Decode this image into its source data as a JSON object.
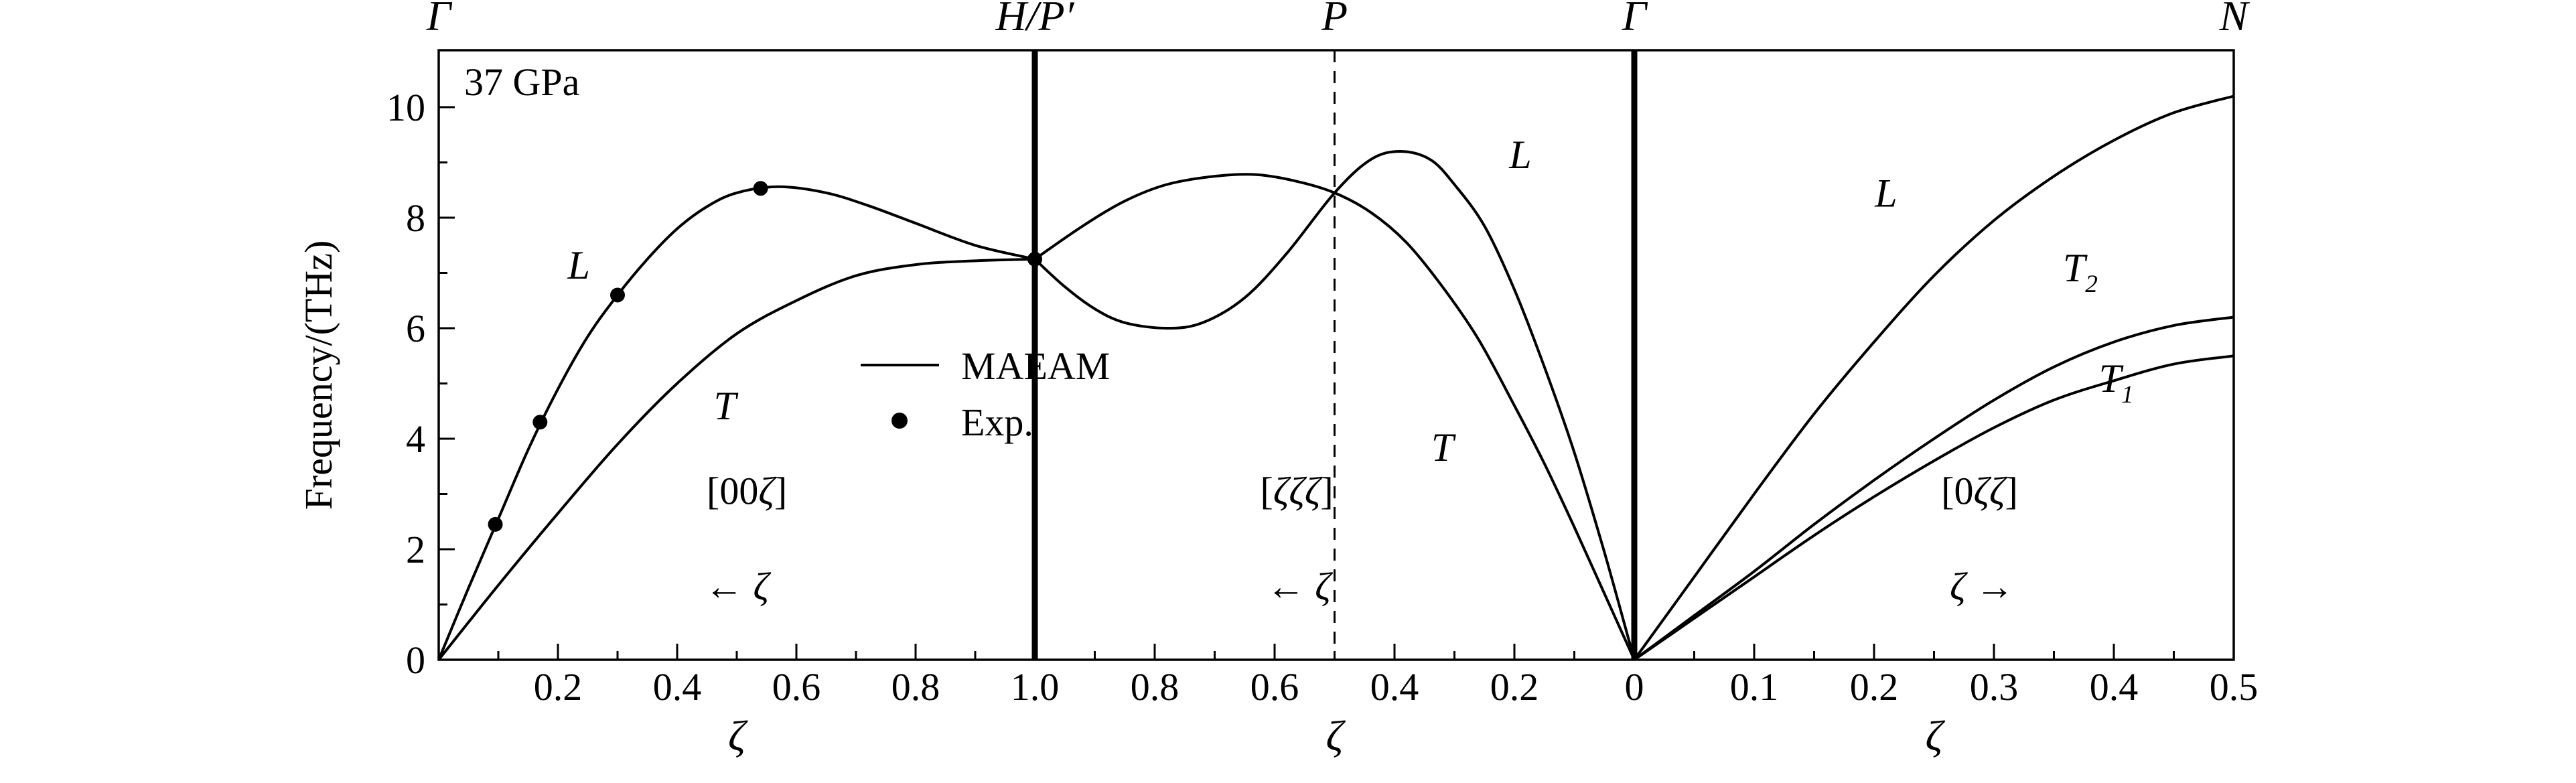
{
  "chart_data": {
    "type": "line",
    "title": "37 GPa",
    "ylabel": "Frequency/(THz)",
    "ylim": [
      0,
      11
    ],
    "yticks": [
      0,
      2,
      4,
      6,
      8,
      10
    ],
    "yminor": [
      1,
      3,
      5,
      7,
      9
    ],
    "top_labels": [
      "Γ",
      "H/P′",
      "P",
      "Γ",
      "N"
    ],
    "legend": {
      "items": [
        {
          "marker": "line",
          "label": "MAEAM"
        },
        {
          "marker": "dot",
          "label": "Exp."
        }
      ]
    },
    "panels": [
      {
        "direction_label": "[00ζ]",
        "arrow_label": "← ζ",
        "xlabel": "ζ",
        "zeta_axis": {
          "start": 0,
          "end": 1,
          "reversed": false
        },
        "xticks": [
          {
            "value": 0.2,
            "label": "0.2"
          },
          {
            "value": 0.4,
            "label": "0.4"
          },
          {
            "value": 0.6,
            "label": "0.6"
          },
          {
            "value": 0.8,
            "label": "0.8"
          },
          {
            "value": 1.0,
            "label": "1.0"
          }
        ],
        "xminor": [
          0.1,
          0.3,
          0.5,
          0.7,
          0.9
        ],
        "series": [
          {
            "name": "L",
            "points": [
              [
                0,
                0
              ],
              [
                0.05,
                1.3
              ],
              [
                0.1,
                2.55
              ],
              [
                0.15,
                3.8
              ],
              [
                0.2,
                4.9
              ],
              [
                0.25,
                5.85
              ],
              [
                0.3,
                6.6
              ],
              [
                0.35,
                7.25
              ],
              [
                0.4,
                7.8
              ],
              [
                0.45,
                8.2
              ],
              [
                0.5,
                8.45
              ],
              [
                0.57,
                8.56
              ],
              [
                0.65,
                8.45
              ],
              [
                0.72,
                8.22
              ],
              [
                0.8,
                7.9
              ],
              [
                0.9,
                7.5
              ],
              [
                1,
                7.25
              ]
            ]
          },
          {
            "name": "T",
            "points": [
              [
                0,
                0
              ],
              [
                0.1,
                1.35
              ],
              [
                0.2,
                2.65
              ],
              [
                0.3,
                3.9
              ],
              [
                0.4,
                5.0
              ],
              [
                0.5,
                5.9
              ],
              [
                0.6,
                6.5
              ],
              [
                0.7,
                6.95
              ],
              [
                0.8,
                7.15
              ],
              [
                0.9,
                7.22
              ],
              [
                1,
                7.25
              ]
            ]
          }
        ],
        "exp_points": [
          [
            0.095,
            2.45
          ],
          [
            0.17,
            4.3
          ],
          [
            0.3,
            6.6
          ],
          [
            0.54,
            8.53
          ],
          [
            1.0,
            7.25
          ]
        ],
        "branch_labels": [
          {
            "text": "L",
            "zeta": 0.235,
            "freq": 6.9
          },
          {
            "text": "T",
            "zeta": 0.48,
            "freq": 4.35
          }
        ],
        "annotation_pos": {
          "direction": {
            "zeta": 0.517,
            "freq": 2.82
          },
          "arrow": {
            "zeta": 0.5,
            "freq": 1.09
          }
        }
      },
      {
        "direction_label": "[ζζζ]",
        "arrow_label": "← ζ",
        "xlabel": "ζ",
        "zeta_axis": {
          "start": 0,
          "end": 1,
          "reversed": true
        },
        "dashed_line_zeta": 0.5,
        "xticks": [
          {
            "value": 0.8,
            "label": "0.8"
          },
          {
            "value": 0.6,
            "label": "0.6"
          },
          {
            "value": 0.4,
            "label": "0.4"
          },
          {
            "value": 0.2,
            "label": "0.2"
          }
        ],
        "xminor": [
          0.9,
          0.7,
          0.5,
          0.3,
          0.1
        ],
        "series": [
          {
            "name": "L",
            "points": [
              [
                1,
                7.25
              ],
              [
                0.95,
                6.75
              ],
              [
                0.9,
                6.35
              ],
              [
                0.85,
                6.1
              ],
              [
                0.78,
                6.0
              ],
              [
                0.72,
                6.1
              ],
              [
                0.65,
                6.55
              ],
              [
                0.58,
                7.35
              ],
              [
                0.5,
                8.45
              ],
              [
                0.44,
                9.05
              ],
              [
                0.39,
                9.2
              ],
              [
                0.34,
                9.05
              ],
              [
                0.3,
                8.6
              ],
              [
                0.25,
                7.85
              ],
              [
                0.2,
                6.7
              ],
              [
                0.15,
                5.3
              ],
              [
                0.1,
                3.75
              ],
              [
                0.05,
                1.95
              ],
              [
                0,
                0
              ]
            ]
          },
          {
            "name": "T",
            "points": [
              [
                1,
                7.25
              ],
              [
                0.92,
                7.85
              ],
              [
                0.85,
                8.3
              ],
              [
                0.78,
                8.6
              ],
              [
                0.7,
                8.75
              ],
              [
                0.63,
                8.78
              ],
              [
                0.56,
                8.65
              ],
              [
                0.5,
                8.45
              ],
              [
                0.44,
                8.1
              ],
              [
                0.38,
                7.55
              ],
              [
                0.32,
                6.75
              ],
              [
                0.26,
                5.8
              ],
              [
                0.2,
                4.6
              ],
              [
                0.15,
                3.55
              ],
              [
                0.1,
                2.4
              ],
              [
                0.05,
                1.2
              ],
              [
                0,
                0
              ]
            ]
          }
        ],
        "exp_points": [],
        "branch_labels": [
          {
            "text": "L",
            "zeta": 0.19,
            "freq": 8.9
          },
          {
            "text": "T",
            "zeta": 0.32,
            "freq": 3.6
          }
        ],
        "annotation_pos": {
          "direction": {
            "zeta": 0.563,
            "freq": 2.82
          },
          "arrow": {
            "zeta": 0.56,
            "freq": 1.09
          }
        }
      },
      {
        "direction_label": "[0ζζ]",
        "arrow_label": "ζ →",
        "xlabel": "ζ",
        "zeta_axis": {
          "start": 0,
          "end": 0.5,
          "reversed": false
        },
        "xticks": [
          {
            "value": 0.0,
            "label": "0"
          },
          {
            "value": 0.1,
            "label": "0.1"
          },
          {
            "value": 0.2,
            "label": "0.2"
          },
          {
            "value": 0.3,
            "label": "0.3"
          },
          {
            "value": 0.4,
            "label": "0.4"
          },
          {
            "value": 0.5,
            "label": "0.5"
          }
        ],
        "xminor": [
          0.05,
          0.15,
          0.25,
          0.35,
          0.45
        ],
        "series": [
          {
            "name": "L",
            "points": [
              [
                0,
                0
              ],
              [
                0.05,
                1.5
              ],
              [
                0.1,
                3.0
              ],
              [
                0.15,
                4.45
              ],
              [
                0.2,
                5.75
              ],
              [
                0.25,
                6.95
              ],
              [
                0.3,
                7.95
              ],
              [
                0.35,
                8.75
              ],
              [
                0.4,
                9.4
              ],
              [
                0.45,
                9.9
              ],
              [
                0.5,
                10.2
              ]
            ]
          },
          {
            "name": "T2",
            "sub": "2",
            "points": [
              [
                0,
                0
              ],
              [
                0.05,
                0.8
              ],
              [
                0.1,
                1.6
              ],
              [
                0.15,
                2.45
              ],
              [
                0.2,
                3.25
              ],
              [
                0.25,
                4.0
              ],
              [
                0.3,
                4.7
              ],
              [
                0.35,
                5.3
              ],
              [
                0.4,
                5.75
              ],
              [
                0.45,
                6.05
              ],
              [
                0.5,
                6.2
              ]
            ]
          },
          {
            "name": "T1",
            "sub": "1",
            "points": [
              [
                0,
                0
              ],
              [
                0.05,
                0.75
              ],
              [
                0.1,
                1.5
              ],
              [
                0.15,
                2.25
              ],
              [
                0.2,
                2.95
              ],
              [
                0.25,
                3.6
              ],
              [
                0.3,
                4.2
              ],
              [
                0.35,
                4.7
              ],
              [
                0.4,
                5.05
              ],
              [
                0.45,
                5.35
              ],
              [
                0.5,
                5.5
              ]
            ]
          }
        ],
        "exp_points": [],
        "branch_labels": [
          {
            "text": "L",
            "zeta": 0.21,
            "freq": 8.2
          },
          {
            "text": "T",
            "sub": "2",
            "zeta": 0.372,
            "freq": 6.85
          },
          {
            "text": "T",
            "sub": "1",
            "zeta": 0.402,
            "freq": 4.85
          }
        ],
        "annotation_pos": {
          "direction": {
            "zeta": 0.288,
            "freq": 2.82
          },
          "arrow": {
            "zeta": 0.29,
            "freq": 1.09
          }
        }
      }
    ]
  }
}
